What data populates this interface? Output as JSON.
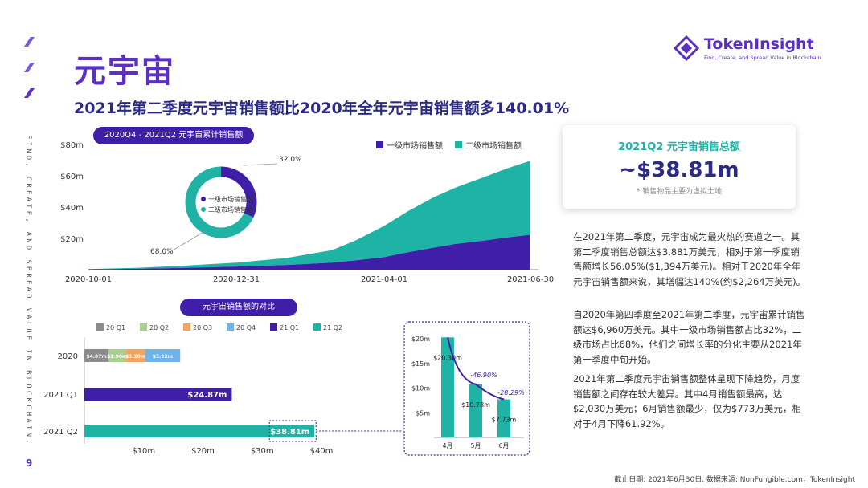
{
  "page": {
    "title": "元宇宙",
    "subtitle": "2021年第二季度元宇宙销售额比2020年全年元宇宙销售额多140.01%",
    "side_tagline": "FIND, CREATE, AND SPREAD VALUE IN BLOCKCHAIN.",
    "page_number": "9",
    "footer": "截止日期: 2021年6月30日. 数据来源: NonFungible.com，TokenInsight",
    "accent_color": "#5b2fc2",
    "teal_color": "#1fb3a6",
    "navy_color": "#3f1ea8"
  },
  "logo": {
    "name": "TokenInsight",
    "tagline": "Find, Create, and Spread Value in Blockchain"
  },
  "summary_card": {
    "title": "2021Q2 元宇宙销售总额",
    "value": "~$38.81m",
    "note": "* 销售物品主要为虚拟土地"
  },
  "paragraphs": [
    "在2021年第二季度，元宇宙成为最火热的赛道之一。其第二季度销售总额达$3,881万美元，相对于第一季度销售额增长56.05%($1,394万美元)。相对于2020年全年元宇宙销售额来说，其增幅达140%(约$2,264万美元)。",
    "自2020年第四季度至2021年第二季度，元宇宙累计销售额达$6,960万美元。其中一级市场销售额占比32%，二级市场占比68%，他们之间增长率的分化主要从2021年第一季度中旬开始。",
    "2021年第二季度元宇宙销售额整体呈现下降趋势，月度销售额之间存在较大差异。其中4月销售额最高，达$2,030万美元；6月销售额最少，仅为$773万美元，相对于4月下降61.92%。"
  ],
  "chart_data": [
    {
      "type": "area",
      "title": "2020Q4 - 2021Q2 元宇宙累计销售额",
      "x": [
        "2020-10-01",
        "2020-11-01",
        "2020-12-01",
        "2020-12-31",
        "2021-01-31",
        "2021-02-28",
        "2021-03-15",
        "2021-04-01",
        "2021-04-15",
        "2021-05-01",
        "2021-05-15",
        "2021-06-01",
        "2021-06-15",
        "2021-06-30"
      ],
      "x_tick_labels": [
        "2020-10-01",
        "2020-12-31",
        "2021-04-01",
        "2021-06-30"
      ],
      "y_tick_labels": [
        "$20m",
        "$40m",
        "$60m",
        "$80m"
      ],
      "ylim": [
        0,
        80
      ],
      "stacked": true,
      "series": [
        {
          "name": "一级市场销售额",
          "color": "#3f1ea8",
          "values": [
            0.2,
            0.6,
            1.2,
            2,
            3,
            4.5,
            6,
            8,
            11,
            14,
            16.5,
            18.5,
            20.5,
            22.3
          ]
        },
        {
          "name": "二级市场销售额",
          "color": "#1fb3a6",
          "values": [
            0.2,
            0.6,
            1.5,
            2.5,
            4.5,
            8,
            13,
            20,
            26,
            32,
            36,
            40.5,
            44,
            47.3
          ]
        }
      ],
      "legend_position": "top-right"
    },
    {
      "type": "pie",
      "donut": true,
      "slices": [
        {
          "name": "一级市场销售额",
          "value": 32.0,
          "label": "32.0%",
          "color": "#3f1ea8"
        },
        {
          "name": "二级市场销售额",
          "value": 68.0,
          "label": "68.0%",
          "color": "#1fb3a6"
        }
      ]
    },
    {
      "type": "bar",
      "orientation": "horizontal",
      "stacked": true,
      "title": "元宇宙销售额的对比",
      "categories": [
        "2020",
        "2021 Q1",
        "2021 Q2"
      ],
      "legend": [
        {
          "name": "20 Q1",
          "color": "#8c8c8c"
        },
        {
          "name": "20 Q2",
          "color": "#a8d08d"
        },
        {
          "name": "20 Q3",
          "color": "#f4a460"
        },
        {
          "name": "20 Q4",
          "color": "#6fb3e8"
        },
        {
          "name": "21 Q1",
          "color": "#3f1ea8"
        },
        {
          "name": "21 Q2",
          "color": "#1fb3a6"
        }
      ],
      "segments": [
        {
          "category": "2020",
          "series": "20 Q1",
          "value": 4.07,
          "label": "$4.07m"
        },
        {
          "category": "2020",
          "series": "20 Q2",
          "value": 2.9,
          "label": "$2.90m"
        },
        {
          "category": "2020",
          "series": "20 Q3",
          "value": 3.28,
          "label": "$3.28m"
        },
        {
          "category": "2020",
          "series": "20 Q4",
          "value": 5.92,
          "label": "$5.92m"
        },
        {
          "category": "2021 Q1",
          "series": "21 Q1",
          "value": 24.87,
          "label": "$24.87m"
        },
        {
          "category": "2021 Q2",
          "series": "21 Q2",
          "value": 38.81,
          "label": "$38.81m"
        }
      ],
      "x_tick_labels": [
        "$10m",
        "$20m",
        "$30m",
        "$40m"
      ],
      "xlim": [
        0,
        40
      ],
      "legend_position": "top"
    },
    {
      "type": "bar",
      "categories": [
        "4月",
        "5月",
        "6月"
      ],
      "values": [
        20.3,
        10.78,
        7.73
      ],
      "value_labels": [
        "$20.30m",
        "$10.78m",
        "$7.73m"
      ],
      "change_labels": [
        "-46.90%",
        "-28.29%"
      ],
      "y_tick_labels": [
        "$5m",
        "$10m",
        "$15m",
        "$20m"
      ],
      "ylim": [
        0,
        21
      ],
      "color": "#1fb3a6",
      "trend_line_color": "#3f1ea8"
    }
  ]
}
